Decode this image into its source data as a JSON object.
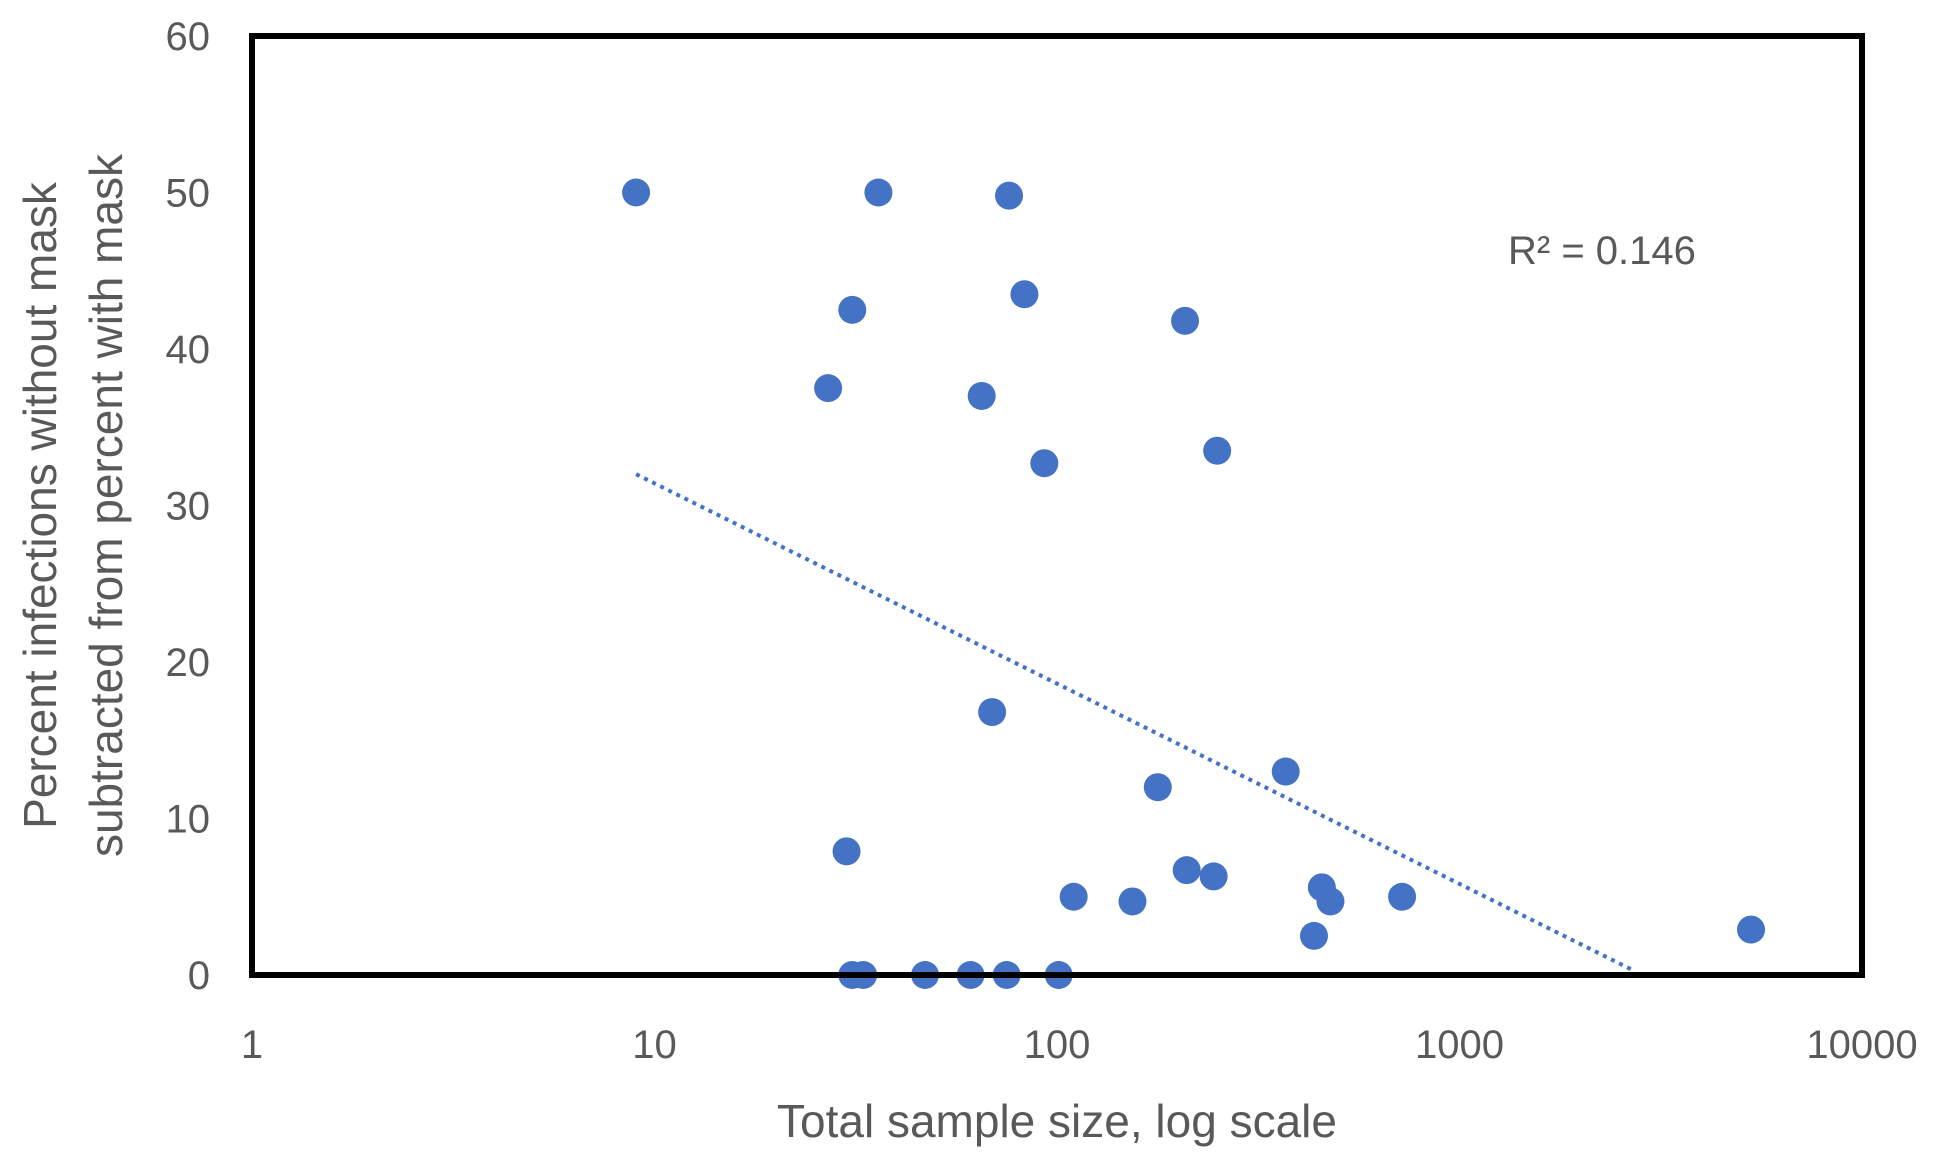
{
  "chart_data": {
    "type": "scatter",
    "xlabel": "Total sample size, log scale",
    "ylabel_line1": "Percent infections without mask",
    "ylabel_line2": "subtracted from percent with mask",
    "x_scale": "log",
    "xlim": [
      1,
      10000
    ],
    "ylim": [
      0,
      60
    ],
    "x_tick_labels": [
      "1",
      "10",
      "100",
      "1000",
      "10000"
    ],
    "y_tick_labels": [
      "0",
      "10",
      "20",
      "30",
      "40",
      "50",
      "60"
    ],
    "grid": false,
    "annotation": "R² = 0.146",
    "colors": {
      "points": "#4472c4",
      "trendline": "#4472c4",
      "frame": "#000000",
      "text": "#595959"
    },
    "trendline": {
      "style": "dotted",
      "x": [
        9,
        2700
      ],
      "y": [
        32,
        0.3
      ]
    },
    "points": [
      {
        "x": 9,
        "y": 50
      },
      {
        "x": 36,
        "y": 50
      },
      {
        "x": 76,
        "y": 49.8
      },
      {
        "x": 31,
        "y": 42.5
      },
      {
        "x": 83,
        "y": 43.5
      },
      {
        "x": 208,
        "y": 41.8
      },
      {
        "x": 27,
        "y": 37.5
      },
      {
        "x": 65,
        "y": 37
      },
      {
        "x": 93,
        "y": 32.7
      },
      {
        "x": 250,
        "y": 33.5
      },
      {
        "x": 69,
        "y": 16.8
      },
      {
        "x": 178,
        "y": 12
      },
      {
        "x": 370,
        "y": 13
      },
      {
        "x": 30,
        "y": 7.9
      },
      {
        "x": 210,
        "y": 6.7
      },
      {
        "x": 245,
        "y": 6.3
      },
      {
        "x": 110,
        "y": 5
      },
      {
        "x": 154,
        "y": 4.7
      },
      {
        "x": 455,
        "y": 5.6
      },
      {
        "x": 478,
        "y": 4.7
      },
      {
        "x": 720,
        "y": 5
      },
      {
        "x": 435,
        "y": 2.5
      },
      {
        "x": 5300,
        "y": 2.9
      },
      {
        "x": 31,
        "y": 0
      },
      {
        "x": 33,
        "y": 0
      },
      {
        "x": 47,
        "y": 0
      },
      {
        "x": 61,
        "y": 0
      },
      {
        "x": 75,
        "y": 0
      },
      {
        "x": 101,
        "y": 0
      }
    ]
  }
}
